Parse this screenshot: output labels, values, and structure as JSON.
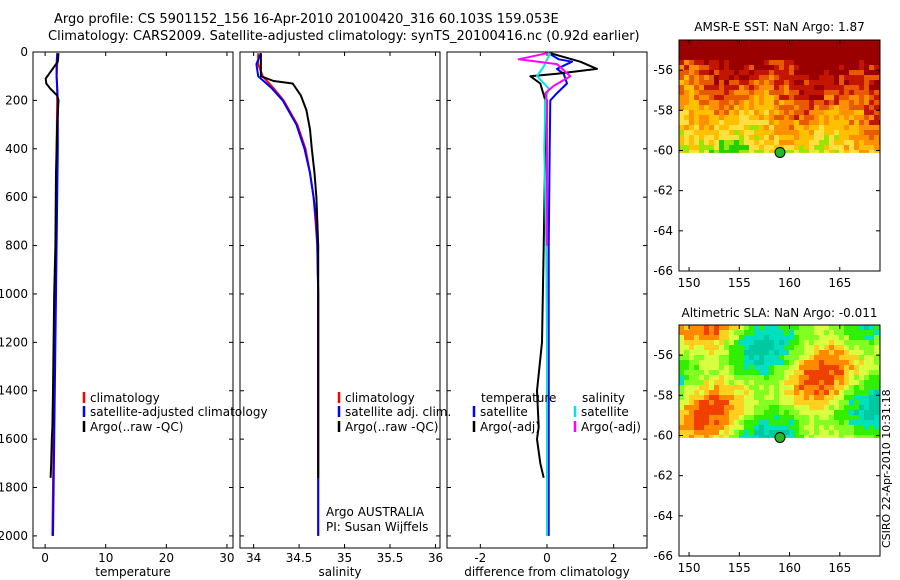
{
  "figure": {
    "title_line1": "Argo profile: CS 5901152_156 16-Apr-2010 20100420_316 60.103S 159.053E",
    "title_line2": "Climatology: CARS2009. Satellite-adjusted climatology: synTS_20100416.nc (0.92d earlier)",
    "side_stamp": "CSIRO 22-Apr-2010 10:31:18"
  },
  "colors": {
    "climatology": "#ff0000",
    "satellite": "#0000ff",
    "argo": "#000000",
    "salinity_satellite": "#00e5e5",
    "salinity_argo": "#ff00ff"
  },
  "chart_data": [
    {
      "type": "line",
      "xlabel": "temperature",
      "ylim": [
        2050,
        0
      ],
      "xlim": [
        -2,
        31
      ],
      "xticks": [
        0,
        10,
        20,
        30
      ],
      "yticks": [
        0,
        200,
        400,
        600,
        800,
        1000,
        1200,
        1400,
        1600,
        1800,
        2000
      ],
      "legend": [
        "climatology",
        "satellite-adjusted climatology",
        "Argo(..raw -QC)"
      ],
      "series": [
        {
          "name": "climatology",
          "color": "#ff0000",
          "points": [
            [
              2.1,
              5
            ],
            [
              2.0,
              50
            ],
            [
              1.9,
              100
            ],
            [
              2.0,
              150
            ],
            [
              2.0,
              200
            ],
            [
              1.9,
              400
            ],
            [
              1.9,
              600
            ],
            [
              1.8,
              800
            ],
            [
              1.7,
              1000
            ],
            [
              1.6,
              1200
            ],
            [
              1.5,
              1400
            ],
            [
              1.4,
              1600
            ],
            [
              1.3,
              1800
            ],
            [
              1.2,
              2000
            ]
          ]
        },
        {
          "name": "satellite-adjusted climatology",
          "color": "#0000ff",
          "points": [
            [
              2.0,
              5
            ],
            [
              1.9,
              50
            ],
            [
              1.9,
              100
            ],
            [
              2.0,
              150
            ],
            [
              2.1,
              200
            ],
            [
              2.1,
              400
            ],
            [
              2.0,
              600
            ],
            [
              1.9,
              800
            ],
            [
              1.8,
              1000
            ],
            [
              1.7,
              1200
            ],
            [
              1.6,
              1400
            ],
            [
              1.5,
              1600
            ],
            [
              1.4,
              1800
            ],
            [
              1.3,
              2000
            ]
          ]
        },
        {
          "name": "Argo(..raw -QC)",
          "color": "#000000",
          "points": [
            [
              2.2,
              5
            ],
            [
              2.1,
              40
            ],
            [
              0.1,
              110
            ],
            [
              0.2,
              130
            ],
            [
              0.8,
              150
            ],
            [
              2.0,
              180
            ],
            [
              2.2,
              200
            ],
            [
              2.0,
              300
            ],
            [
              1.8,
              500
            ],
            [
              1.7,
              800
            ],
            [
              1.5,
              1000
            ],
            [
              1.4,
              1200
            ],
            [
              1.3,
              1400
            ],
            [
              1.2,
              1550
            ],
            [
              1.1,
              1600
            ],
            [
              1.0,
              1700
            ],
            [
              0.9,
              1760
            ]
          ]
        }
      ]
    },
    {
      "type": "line",
      "xlabel": "salinity",
      "ylim": [
        2050,
        0
      ],
      "xlim": [
        33.85,
        36.05
      ],
      "xticks": [
        34,
        34.5,
        35,
        35.5,
        36
      ],
      "legend": [
        "climatology",
        "satellite adj. clim.",
        "Argo(..raw -QC)"
      ],
      "annotation": [
        "Argo AUSTRALIA",
        "PI: Susan Wijffels"
      ],
      "series": [
        {
          "name": "climatology",
          "color": "#ff0000",
          "points": [
            [
              34.05,
              5
            ],
            [
              34.05,
              50
            ],
            [
              34.1,
              100
            ],
            [
              34.22,
              150
            ],
            [
              34.33,
              200
            ],
            [
              34.48,
              300
            ],
            [
              34.57,
              400
            ],
            [
              34.62,
              500
            ],
            [
              34.66,
              600
            ],
            [
              34.68,
              700
            ],
            [
              34.7,
              800
            ],
            [
              34.71,
              1000
            ],
            [
              34.71,
              1200
            ],
            [
              34.71,
              1400
            ],
            [
              34.71,
              1600
            ],
            [
              34.71,
              1800
            ],
            [
              34.71,
              2000
            ]
          ]
        },
        {
          "name": "satellite adj. clim.",
          "color": "#0000ff",
          "points": [
            [
              34.08,
              5
            ],
            [
              34.03,
              50
            ],
            [
              34.05,
              100
            ],
            [
              34.2,
              150
            ],
            [
              34.32,
              200
            ],
            [
              34.47,
              300
            ],
            [
              34.56,
              400
            ],
            [
              34.62,
              500
            ],
            [
              34.66,
              600
            ],
            [
              34.69,
              700
            ],
            [
              34.7,
              800
            ],
            [
              34.71,
              1000
            ],
            [
              34.71,
              1200
            ],
            [
              34.71,
              1400
            ],
            [
              34.71,
              1600
            ],
            [
              34.71,
              1800
            ],
            [
              34.71,
              2000
            ]
          ]
        },
        {
          "name": "Argo(..raw -QC)",
          "color": "#000000",
          "points": [
            [
              34.08,
              5
            ],
            [
              34.08,
              60
            ],
            [
              34.08,
              100
            ],
            [
              34.22,
              120
            ],
            [
              34.43,
              130
            ],
            [
              34.52,
              180
            ],
            [
              34.58,
              240
            ],
            [
              34.62,
              320
            ],
            [
              34.64,
              400
            ],
            [
              34.67,
              500
            ],
            [
              34.69,
              600
            ],
            [
              34.7,
              700
            ],
            [
              34.71,
              800
            ],
            [
              34.71,
              1000
            ],
            [
              34.71,
              1200
            ],
            [
              34.71,
              1400
            ],
            [
              34.71,
              1600
            ],
            [
              34.71,
              1760
            ]
          ]
        }
      ]
    },
    {
      "type": "line",
      "xlabel": "difference from climatology",
      "ylim": [
        2050,
        0
      ],
      "xlim": [
        -3.0,
        3.0
      ],
      "xticks": [
        -2,
        0,
        2
      ],
      "legend_left_title": "temperature",
      "legend_right_title": "salinity",
      "legend_left": [
        "satellite",
        "Argo(-adj)"
      ],
      "legend_right": [
        "satellite",
        "Argo(-adj)"
      ],
      "series": [
        {
          "name": "satellite",
          "color": "#0000ff",
          "points": [
            [
              0.05,
              5
            ],
            [
              0.35,
              30
            ],
            [
              0.75,
              40
            ],
            [
              0.3,
              70
            ],
            [
              0.5,
              90
            ],
            [
              0.6,
              130
            ],
            [
              0.3,
              170
            ],
            [
              0.1,
              200
            ],
            [
              0.08,
              400
            ],
            [
              0.05,
              800
            ],
            [
              0.05,
              1200
            ],
            [
              0.05,
              1600
            ],
            [
              0.05,
              2000
            ]
          ]
        },
        {
          "name": "Argo(-adj)",
          "color": "#000000",
          "points": [
            [
              0.1,
              5
            ],
            [
              1.0,
              40
            ],
            [
              1.5,
              70
            ],
            [
              0.3,
              90
            ],
            [
              -0.5,
              100
            ],
            [
              -0.2,
              130
            ],
            [
              -0.05,
              200
            ],
            [
              -0.05,
              300
            ],
            [
              -0.05,
              400
            ],
            [
              -0.1,
              800
            ],
            [
              -0.15,
              1200
            ],
            [
              -0.3,
              1400
            ],
            [
              -0.25,
              1550
            ],
            [
              -0.3,
              1600
            ],
            [
              -0.2,
              1700
            ],
            [
              -0.1,
              1760
            ]
          ]
        },
        {
          "name": "satellite",
          "color": "#00e5e5",
          "points": [
            [
              0.1,
              5
            ],
            [
              -0.1,
              60
            ],
            [
              -0.3,
              100
            ],
            [
              0.05,
              150
            ],
            [
              -0.05,
              200
            ],
            [
              -0.08,
              400
            ],
            [
              -0.05,
              600
            ],
            [
              -0.02,
              800
            ],
            [
              0.0,
              1200
            ],
            [
              0.0,
              1600
            ],
            [
              0.0,
              2000
            ]
          ]
        },
        {
          "name": "Argo(-adj)",
          "color": "#ff00ff",
          "points": [
            [
              0.0,
              5
            ],
            [
              -0.85,
              30
            ],
            [
              0.3,
              50
            ],
            [
              0.7,
              100
            ],
            [
              0.2,
              140
            ],
            [
              -0.05,
              170
            ],
            [
              0.0,
              200
            ],
            [
              0.0,
              400
            ],
            [
              0.0,
              800
            ]
          ]
        }
      ]
    },
    {
      "type": "heatmap",
      "title": "AMSR-E SST: NaN Argo: 1.87",
      "xlim": [
        149,
        169
      ],
      "ylim": [
        -66,
        -54.5
      ],
      "xticks": [
        150,
        155,
        160,
        165
      ],
      "yticks": [
        -56,
        -58,
        -60,
        -62,
        -64,
        -66
      ],
      "data_ylim": [
        -60.1,
        -54.5
      ],
      "marker": [
        159.05,
        -60.1
      ],
      "colors": [
        "#9b0000",
        "#c41500",
        "#e85a00",
        "#ff9000",
        "#ffc000",
        "#ffe040",
        "#9be600",
        "#20d000"
      ]
    },
    {
      "type": "heatmap",
      "title": "Altimetric SLA: NaN Argo: -0.011",
      "xlim": [
        149,
        169
      ],
      "ylim": [
        -66,
        -54.5
      ],
      "xticks": [
        150,
        155,
        160,
        165
      ],
      "yticks": [
        -56,
        -58,
        -60,
        -62,
        -64,
        -66
      ],
      "data_ylim": [
        -60.1,
        -54.5
      ],
      "marker": [
        159.05,
        -60.1
      ],
      "colors": [
        "#00c8a0",
        "#00e0c0",
        "#30f000",
        "#80ff20",
        "#d8ff40",
        "#ffd020",
        "#ff8a00",
        "#f04000"
      ]
    }
  ]
}
